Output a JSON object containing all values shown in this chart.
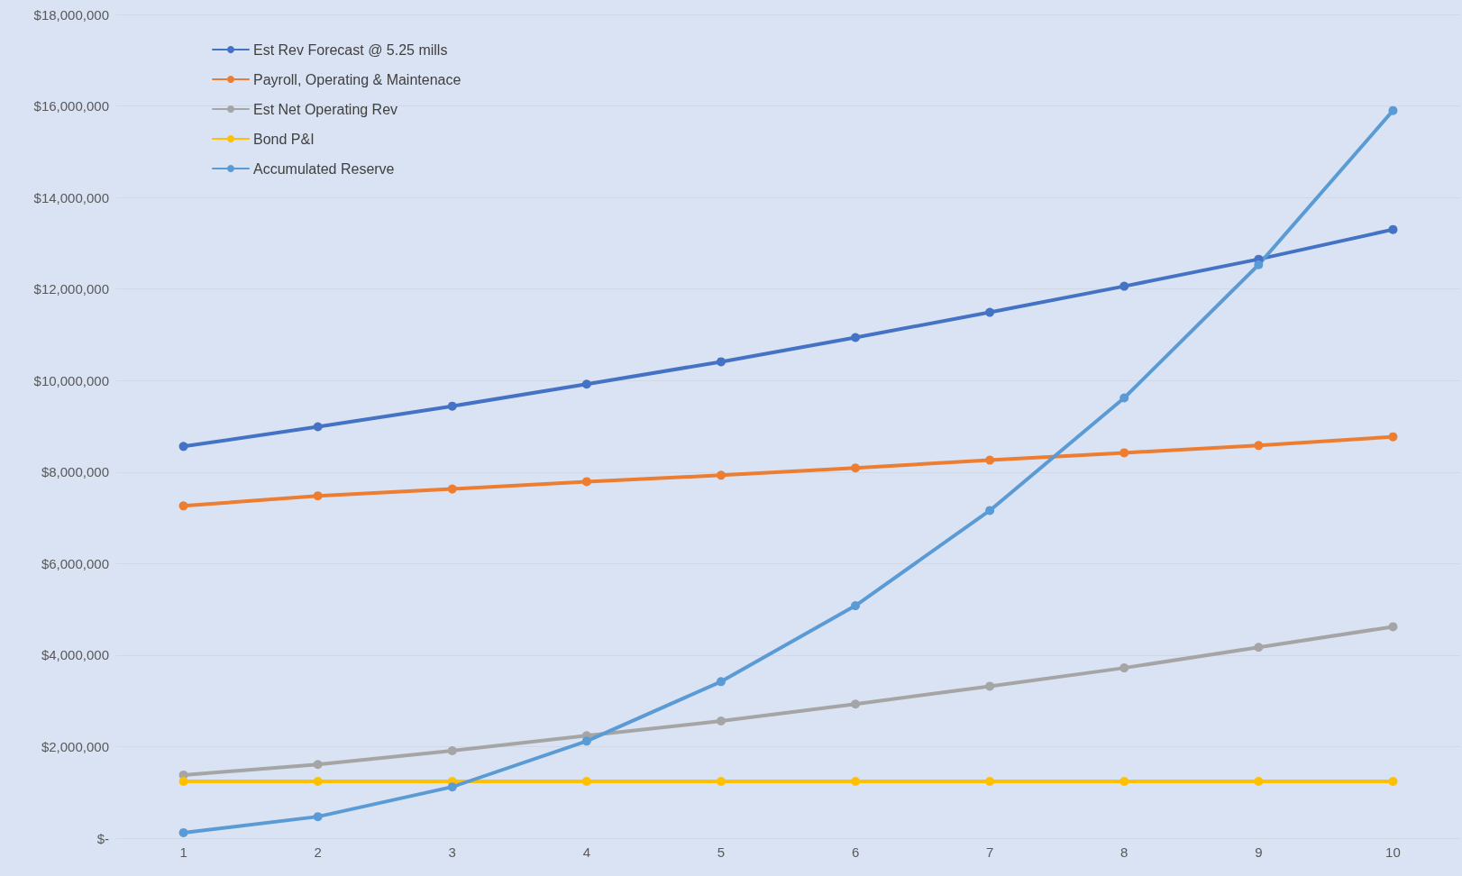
{
  "chart_data": {
    "type": "line",
    "categories": [
      "1",
      "2",
      "3",
      "4",
      "5",
      "6",
      "7",
      "8",
      "9",
      "10"
    ],
    "series": [
      {
        "name": "Est Rev Forecast @ 5.25 mills",
        "color": "#4472c4",
        "values": [
          8560000,
          8990000,
          9440000,
          9920000,
          10410000,
          10940000,
          11490000,
          12060000,
          12650000,
          13300000
        ]
      },
      {
        "name": "Payroll, Operating & Maintenace",
        "color": "#ed7d31",
        "values": [
          7260000,
          7480000,
          7630000,
          7790000,
          7930000,
          8090000,
          8260000,
          8420000,
          8580000,
          8770000
        ]
      },
      {
        "name": "Est Net Operating Rev",
        "color": "#a5a5a5",
        "values": [
          1380000,
          1610000,
          1910000,
          2240000,
          2560000,
          2930000,
          3320000,
          3720000,
          4170000,
          4620000
        ]
      },
      {
        "name": "Bond P&I",
        "color": "#ffc000",
        "values": [
          1240000,
          1240000,
          1240000,
          1240000,
          1240000,
          1240000,
          1240000,
          1240000,
          1240000,
          1240000
        ]
      },
      {
        "name": "Accumulated Reserve",
        "color": "#5b9bd5",
        "values": [
          120000,
          470000,
          1120000,
          2120000,
          3420000,
          5080000,
          7160000,
          9620000,
          12530000,
          15900000
        ]
      }
    ],
    "ylim": [
      0,
      18000000
    ],
    "yticks": [
      {
        "value": 0,
        "label": "$-"
      },
      {
        "value": 2000000,
        "label": "$2,000,000"
      },
      {
        "value": 4000000,
        "label": "$4,000,000"
      },
      {
        "value": 6000000,
        "label": "$6,000,000"
      },
      {
        "value": 8000000,
        "label": "$8,000,000"
      },
      {
        "value": 10000000,
        "label": "$10,000,000"
      },
      {
        "value": 12000000,
        "label": "$12,000,000"
      },
      {
        "value": 14000000,
        "label": "$14,000,000"
      },
      {
        "value": 16000000,
        "label": "$16,000,000"
      },
      {
        "value": 18000000,
        "label": "$18,000,000"
      }
    ],
    "grid": "y",
    "legend": "top left",
    "marker": "circle",
    "line_style": "solid"
  }
}
